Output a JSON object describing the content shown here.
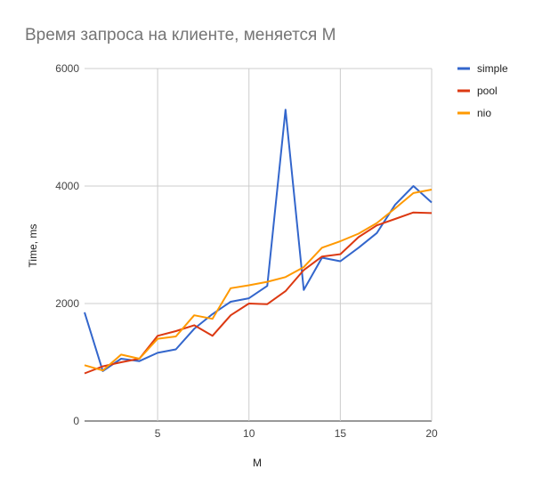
{
  "chart_data": {
    "type": "line",
    "title": "Время запроса на клиенте, меняется M",
    "xlabel": "M",
    "ylabel": "Time, ms",
    "x": [
      1,
      2,
      3,
      4,
      5,
      6,
      7,
      8,
      9,
      10,
      11,
      12,
      13,
      14,
      15,
      16,
      17,
      18,
      19,
      20
    ],
    "xlim": [
      1,
      20
    ],
    "ylim": [
      0,
      6000
    ],
    "x_ticks": [
      5,
      10,
      15,
      20
    ],
    "y_ticks": [
      0,
      2000,
      4000,
      6000
    ],
    "grid": true,
    "legend_position": "right",
    "series": [
      {
        "name": "simple",
        "color": "#3366cc",
        "values": [
          1850,
          850,
          1060,
          1020,
          1160,
          1220,
          1570,
          1820,
          2030,
          2090,
          2300,
          5300,
          2230,
          2780,
          2720,
          2950,
          3200,
          3680,
          4000,
          3720
        ]
      },
      {
        "name": "pool",
        "color": "#dc3912",
        "values": [
          810,
          930,
          1000,
          1060,
          1450,
          1530,
          1630,
          1450,
          1800,
          2000,
          1990,
          2210,
          2570,
          2800,
          2840,
          3130,
          3330,
          3440,
          3550,
          3540
        ]
      },
      {
        "name": "nio",
        "color": "#ff9900",
        "values": [
          950,
          860,
          1130,
          1060,
          1400,
          1440,
          1800,
          1740,
          2260,
          2310,
          2370,
          2450,
          2620,
          2950,
          3060,
          3190,
          3370,
          3620,
          3880,
          3940
        ]
      }
    ]
  }
}
